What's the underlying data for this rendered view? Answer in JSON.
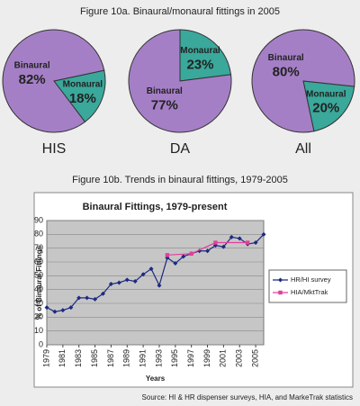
{
  "figure_a_title": "Figure 10a. Binaural/monaural fittings in 2005",
  "figure_b_title": "Figure 10b. Trends in binaural fittings, 1979-2005",
  "source": "Source: HI & HR dispenser surveys, HIA, and MarkeTrak statistics",
  "chart_data": [
    {
      "type": "pie",
      "title": "HIS",
      "categories": [
        "Binaural",
        "Monaural"
      ],
      "values": [
        82,
        18
      ],
      "value_labels": [
        "82%",
        "18%"
      ],
      "colors": [
        "#a57fc6",
        "#3aa89a"
      ]
    },
    {
      "type": "pie",
      "title": "DA",
      "categories": [
        "Binaural",
        "Monaural"
      ],
      "values": [
        77,
        23
      ],
      "value_labels": [
        "77%",
        "23%"
      ],
      "colors": [
        "#a57fc6",
        "#3aa89a"
      ]
    },
    {
      "type": "pie",
      "title": "All",
      "categories": [
        "Binaural",
        "Monaural"
      ],
      "values": [
        80,
        20
      ],
      "value_labels": [
        "80%",
        "20%"
      ],
      "colors": [
        "#a57fc6",
        "#3aa89a"
      ]
    },
    {
      "type": "line",
      "title": "Binaural Fittings, 1979-present",
      "x_label": "Years",
      "y_label": "% of Binaural Fittings",
      "xlim": [
        1979,
        2006
      ],
      "xticks": [
        1979,
        1981,
        1983,
        1985,
        1987,
        1989,
        1991,
        1993,
        1995,
        1997,
        1999,
        2001,
        2003,
        2005
      ],
      "ylim": [
        0,
        90
      ],
      "yticks": [
        0,
        10,
        20,
        30,
        40,
        50,
        60,
        70,
        80,
        90
      ],
      "grid": true,
      "legend": "right",
      "series": [
        {
          "name": "HR/HI survey",
          "color": "#1c2a80",
          "x": [
            1979,
            1980,
            1981,
            1982,
            1983,
            1984,
            1985,
            1986,
            1987,
            1988,
            1989,
            1990,
            1991,
            1992,
            1993,
            1994,
            1995,
            1996,
            1997,
            1998,
            1999,
            2000,
            2001,
            2002,
            2003,
            2004,
            2005,
            2006
          ],
          "values": [
            27,
            24,
            25,
            27,
            34,
            34,
            33,
            37,
            44,
            45,
            47,
            46,
            51,
            55,
            43,
            63,
            59,
            64,
            66,
            68,
            68,
            72,
            71,
            78,
            77,
            73,
            74,
            80
          ]
        },
        {
          "name": "HIA/MktTrak",
          "color": "#e0409a",
          "x": [
            1994,
            1997,
            2000,
            2004
          ],
          "values": [
            65,
            66,
            74,
            74
          ]
        }
      ]
    }
  ]
}
